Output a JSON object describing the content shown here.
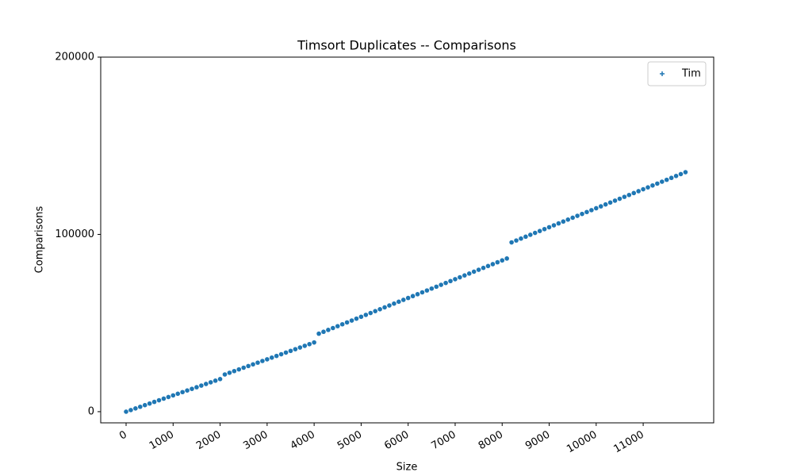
{
  "chart_data": {
    "type": "scatter",
    "title": "Timsort Duplicates -- Comparisons",
    "x_label": "Size",
    "y_label": "Comparisons",
    "x": [
      0,
      100,
      200,
      300,
      400,
      500,
      600,
      700,
      800,
      900,
      1000,
      1100,
      1200,
      1300,
      1400,
      1500,
      1600,
      1700,
      1800,
      1900,
      2000,
      2100,
      2200,
      2300,
      2400,
      2500,
      2600,
      2700,
      2800,
      2900,
      3000,
      3100,
      3200,
      3300,
      3400,
      3500,
      3600,
      3700,
      3800,
      3900,
      4000,
      4100,
      4200,
      4300,
      4400,
      4500,
      4600,
      4700,
      4800,
      4900,
      5000,
      5100,
      5200,
      5300,
      5400,
      5500,
      5600,
      5700,
      5800,
      5900,
      6000,
      6100,
      6200,
      6300,
      6400,
      6500,
      6600,
      6700,
      6800,
      6900,
      7000,
      7100,
      7200,
      7300,
      7400,
      7500,
      7600,
      7700,
      7800,
      7900,
      8000,
      8100,
      8200,
      8300,
      8400,
      8500,
      8600,
      8700,
      8800,
      8900,
      9000,
      9100,
      9200,
      9300,
      9400,
      9500,
      9600,
      9700,
      9800,
      9900,
      10000,
      10100,
      10200,
      10300,
      10400,
      10500,
      10600,
      10700,
      10800,
      10900,
      11000,
      11100,
      11200,
      11300,
      11400,
      11500,
      11600,
      11700,
      11800,
      11900
    ],
    "series": [
      {
        "name": "Tim",
        "color": "#1f77b4",
        "marker": "+",
        "values": [
          0,
          920,
          1840,
          2760,
          3680,
          4600,
          5520,
          6440,
          7360,
          8280,
          9200,
          10120,
          11040,
          11960,
          12880,
          13800,
          14720,
          15640,
          16560,
          17480,
          18400,
          21000,
          21950,
          22900,
          23850,
          24800,
          25750,
          26700,
          27650,
          28600,
          29550,
          30500,
          31450,
          32400,
          33350,
          34300,
          35250,
          36200,
          37150,
          38100,
          39050,
          44000,
          45060,
          46120,
          47180,
          48240,
          49300,
          50360,
          51420,
          52480,
          53540,
          54600,
          55660,
          56720,
          57780,
          58840,
          59900,
          60960,
          62020,
          63080,
          64140,
          65200,
          66260,
          67320,
          68380,
          69440,
          70500,
          71560,
          72620,
          73680,
          74740,
          75800,
          76860,
          77920,
          78980,
          80040,
          81100,
          82160,
          83220,
          84280,
          85340,
          86400,
          95500,
          96570,
          97640,
          98710,
          99780,
          100850,
          101920,
          102990,
          104060,
          105130,
          106200,
          107270,
          108340,
          109410,
          110480,
          111550,
          112620,
          113690,
          114760,
          115830,
          116900,
          117970,
          119040,
          120110,
          121180,
          122250,
          123320,
          124390,
          125460,
          126530,
          127600,
          128670,
          129740,
          130810,
          131880,
          132950,
          134020,
          135090
        ]
      }
    ],
    "xlim": [
      -540,
      12500
    ],
    "ylim": [
      -6300,
      200000
    ],
    "xticks": [
      0,
      1000,
      2000,
      3000,
      4000,
      5000,
      6000,
      7000,
      8000,
      9000,
      10000,
      11000
    ],
    "yticks": [
      0,
      100000,
      200000
    ],
    "legend_position": "upper right"
  }
}
